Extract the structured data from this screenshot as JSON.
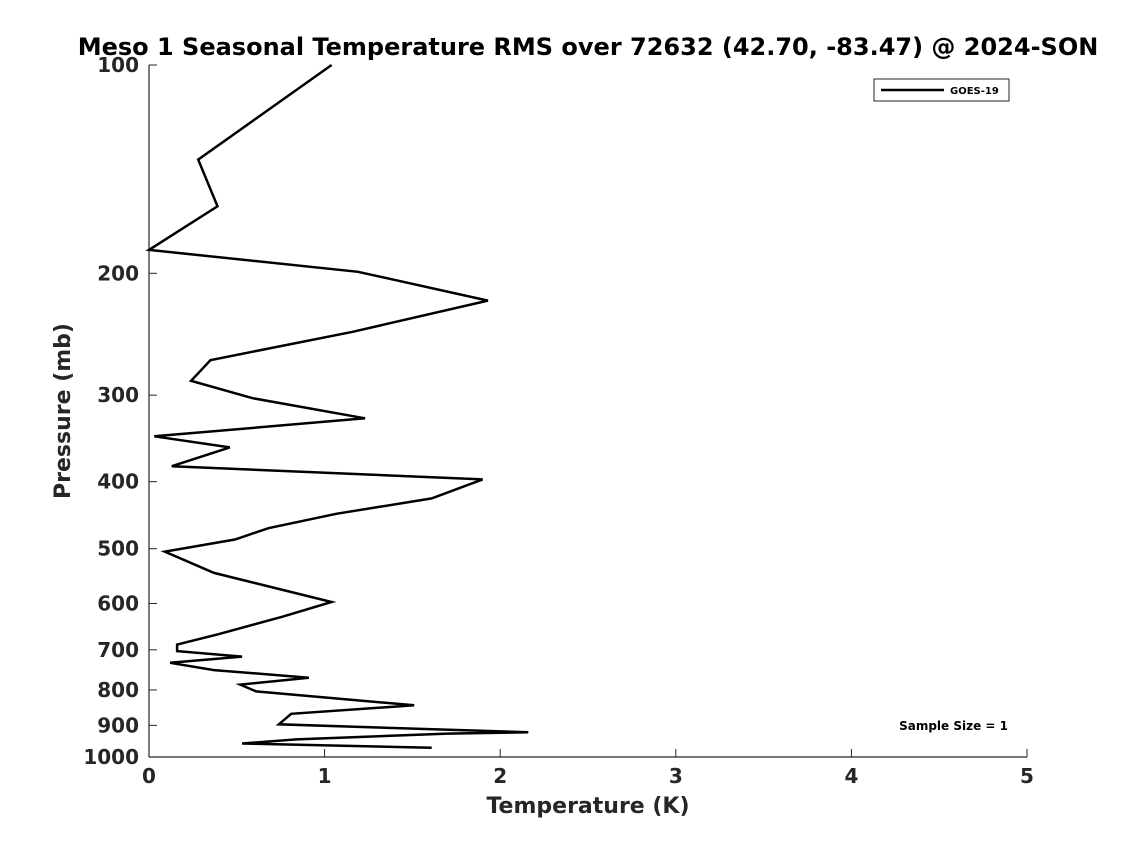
{
  "chart_data": {
    "type": "line",
    "title": "Meso 1 Seasonal Temperature RMS over 72632 (42.70, -83.47) @ 2024-SON",
    "xlabel": "Temperature (K)",
    "ylabel": "Pressure (mb)",
    "xlim": [
      0,
      5
    ],
    "ylim": [
      100,
      1000
    ],
    "yscale": "log",
    "yreversed": true,
    "xticks": [
      "0",
      "1",
      "2",
      "3",
      "4",
      "5"
    ],
    "yticks": [
      "100",
      "200",
      "300",
      "400",
      "500",
      "600",
      "700",
      "800",
      "900",
      "1000"
    ],
    "legend_position": "top-right",
    "annotation": "Sample Size = 1",
    "colors": {
      "line": "#000000",
      "axis": "#262626"
    },
    "series": [
      {
        "name": "GOES-19",
        "temperature": [
          1.04,
          0.28,
          0.39,
          0.0,
          1.19,
          1.93,
          1.16,
          0.35,
          0.24,
          0.59,
          1.23,
          0.03,
          0.46,
          0.13,
          1.9,
          1.61,
          1.07,
          0.68,
          0.49,
          0.09,
          0.37,
          1.04,
          0.76,
          0.39,
          0.16,
          0.16,
          0.53,
          0.12,
          0.37,
          0.91,
          0.52,
          0.61,
          1.51,
          0.81,
          0.74,
          2.16,
          1.7,
          0.84,
          0.53,
          1.61
        ],
        "pressure": [
          100,
          137,
          160,
          185,
          199,
          219,
          243,
          267,
          286,
          303,
          324,
          344,
          357,
          380,
          397,
          423,
          445,
          467,
          485,
          505,
          542,
          597,
          627,
          665,
          688,
          703,
          716,
          731,
          749,
          768,
          786,
          804,
          842,
          866,
          897,
          921,
          925,
          943,
          956,
          970
        ]
      }
    ]
  }
}
